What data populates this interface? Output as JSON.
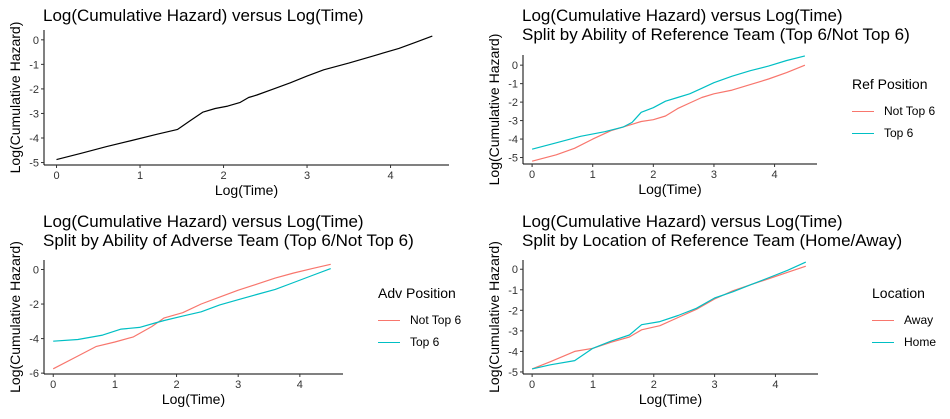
{
  "chart_data": [
    {
      "type": "line",
      "title": [
        "Log(Cumulative Hazard) versus Log(Time)"
      ],
      "xlabel": "Log(Time)",
      "ylabel": "Log(Cumulative Hazard)",
      "xlim": [
        -0.15,
        4.7
      ],
      "ylim": [
        -5.1,
        0.4
      ],
      "xticks": [
        "0",
        "1",
        "2",
        "3",
        "4"
      ],
      "yticks": [
        "0",
        "-1",
        "-2",
        "-3",
        "-4",
        "-5"
      ],
      "legend": null,
      "series": [
        {
          "color": "#000000",
          "x": [
            0,
            0.3,
            0.6,
            0.9,
            1.2,
            1.45,
            1.6,
            1.75,
            1.9,
            2.05,
            2.2,
            2.3,
            2.4,
            2.6,
            2.8,
            3.0,
            3.2,
            3.5,
            3.8,
            4.1,
            4.3,
            4.5
          ],
          "y": [
            -4.88,
            -4.62,
            -4.35,
            -4.1,
            -3.85,
            -3.65,
            -3.3,
            -2.95,
            -2.8,
            -2.7,
            -2.55,
            -2.35,
            -2.25,
            -2.0,
            -1.75,
            -1.48,
            -1.22,
            -0.95,
            -0.65,
            -0.35,
            -0.1,
            0.15
          ]
        }
      ]
    },
    {
      "type": "line",
      "title": [
        "Log(Cumulative Hazard) versus Log(Time)",
        "Split by Ability of Reference Team (Top 6/Not Top 6)"
      ],
      "xlabel": "Log(Time)",
      "ylabel": "Log(Cumulative Hazard)",
      "xlim": [
        -0.15,
        4.7
      ],
      "ylim": [
        -5.35,
        0.55
      ],
      "xticks": [
        "0",
        "1",
        "2",
        "3",
        "4"
      ],
      "yticks": [
        "0",
        "-1",
        "-2",
        "-3",
        "-4",
        "-5"
      ],
      "legend": {
        "title": "Ref Position",
        "entries": [
          "Not Top 6",
          "Top 6"
        ],
        "colors": [
          "#F8766D",
          "#00BFC4"
        ]
      },
      "series": [
        {
          "name": "Not Top 6",
          "color": "#F8766D",
          "x": [
            0,
            0.4,
            0.7,
            1.0,
            1.3,
            1.6,
            1.8,
            2.0,
            2.2,
            2.4,
            2.6,
            2.8,
            3.0,
            3.3,
            3.6,
            3.9,
            4.2,
            4.5
          ],
          "y": [
            -5.2,
            -4.85,
            -4.5,
            -4.0,
            -3.55,
            -3.25,
            -3.05,
            -2.95,
            -2.75,
            -2.35,
            -2.05,
            -1.75,
            -1.55,
            -1.35,
            -1.05,
            -0.75,
            -0.4,
            0.0
          ]
        },
        {
          "name": "Top 6",
          "color": "#00BFC4",
          "x": [
            0,
            0.4,
            0.8,
            1.2,
            1.5,
            1.65,
            1.8,
            2.0,
            2.2,
            2.4,
            2.6,
            2.8,
            3.0,
            3.3,
            3.6,
            3.9,
            4.2,
            4.5
          ],
          "y": [
            -4.55,
            -4.2,
            -3.85,
            -3.6,
            -3.35,
            -3.1,
            -2.55,
            -2.3,
            -1.95,
            -1.75,
            -1.55,
            -1.25,
            -0.95,
            -0.6,
            -0.3,
            -0.05,
            0.25,
            0.5
          ]
        }
      ]
    },
    {
      "type": "line",
      "title": [
        "Log(Cumulative Hazard) versus Log(Time)",
        "Split by Ability of Adverse Team (Top 6/Not Top 6)"
      ],
      "xlabel": "Log(Time)",
      "ylabel": "Log(Cumulative Hazard)",
      "xlim": [
        -0.15,
        4.7
      ],
      "ylim": [
        -6.05,
        0.55
      ],
      "xticks": [
        "0",
        "1",
        "2",
        "3",
        "4"
      ],
      "yticks": [
        "0",
        "-2",
        "-4",
        "-6"
      ],
      "legend": {
        "title": "Adv Position",
        "entries": [
          "Not Top 6",
          "Top 6"
        ],
        "colors": [
          "#F8766D",
          "#00BFC4"
        ]
      },
      "series": [
        {
          "name": "Not Top 6",
          "color": "#F8766D",
          "x": [
            0,
            0.35,
            0.7,
            1.0,
            1.3,
            1.6,
            1.8,
            2.1,
            2.4,
            2.7,
            3.0,
            3.3,
            3.6,
            3.9,
            4.2,
            4.5
          ],
          "y": [
            -5.75,
            -5.1,
            -4.45,
            -4.2,
            -3.9,
            -3.3,
            -2.8,
            -2.5,
            -2.0,
            -1.6,
            -1.2,
            -0.85,
            -0.5,
            -0.2,
            0.05,
            0.3
          ]
        },
        {
          "name": "Top 6",
          "color": "#00BFC4",
          "x": [
            0,
            0.4,
            0.8,
            1.1,
            1.4,
            1.65,
            1.8,
            2.1,
            2.4,
            2.7,
            3.0,
            3.3,
            3.6,
            3.9,
            4.2,
            4.5
          ],
          "y": [
            -4.15,
            -4.05,
            -3.8,
            -3.45,
            -3.35,
            -3.1,
            -2.95,
            -2.7,
            -2.45,
            -2.05,
            -1.75,
            -1.45,
            -1.15,
            -0.75,
            -0.35,
            0.05
          ]
        }
      ]
    },
    {
      "type": "line",
      "title": [
        "Log(Cumulative Hazard) versus Log(Time)",
        "Split by Location of Reference Team (Home/Away)"
      ],
      "xlabel": "Log(Time)",
      "ylabel": "Log(Cumulative Hazard)",
      "xlim": [
        -0.15,
        4.7
      ],
      "ylim": [
        -5.1,
        0.45
      ],
      "xticks": [
        "0",
        "1",
        "2",
        "3",
        "4"
      ],
      "yticks": [
        "0",
        "-1",
        "-2",
        "-3",
        "-4",
        "-5"
      ],
      "legend": {
        "title": "Location",
        "entries": [
          "Away",
          "Home"
        ],
        "colors": [
          "#F8766D",
          "#00BFC4"
        ]
      },
      "series": [
        {
          "name": "Away",
          "color": "#F8766D",
          "x": [
            0,
            0.3,
            0.7,
            1.0,
            1.3,
            1.6,
            1.8,
            2.1,
            2.4,
            2.7,
            3.0,
            3.3,
            3.6,
            3.9,
            4.2,
            4.5
          ],
          "y": [
            -4.85,
            -4.5,
            -4.0,
            -3.85,
            -3.55,
            -3.3,
            -2.95,
            -2.75,
            -2.35,
            -1.95,
            -1.45,
            -1.05,
            -0.75,
            -0.45,
            -0.15,
            0.15
          ]
        },
        {
          "name": "Home",
          "color": "#00BFC4",
          "x": [
            0,
            0.3,
            0.7,
            1.0,
            1.3,
            1.6,
            1.8,
            2.1,
            2.4,
            2.7,
            3.0,
            3.3,
            3.6,
            3.9,
            4.2,
            4.5
          ],
          "y": [
            -4.85,
            -4.65,
            -4.45,
            -3.85,
            -3.5,
            -3.2,
            -2.7,
            -2.55,
            -2.25,
            -1.9,
            -1.4,
            -1.1,
            -0.75,
            -0.4,
            -0.05,
            0.35
          ]
        }
      ]
    }
  ]
}
